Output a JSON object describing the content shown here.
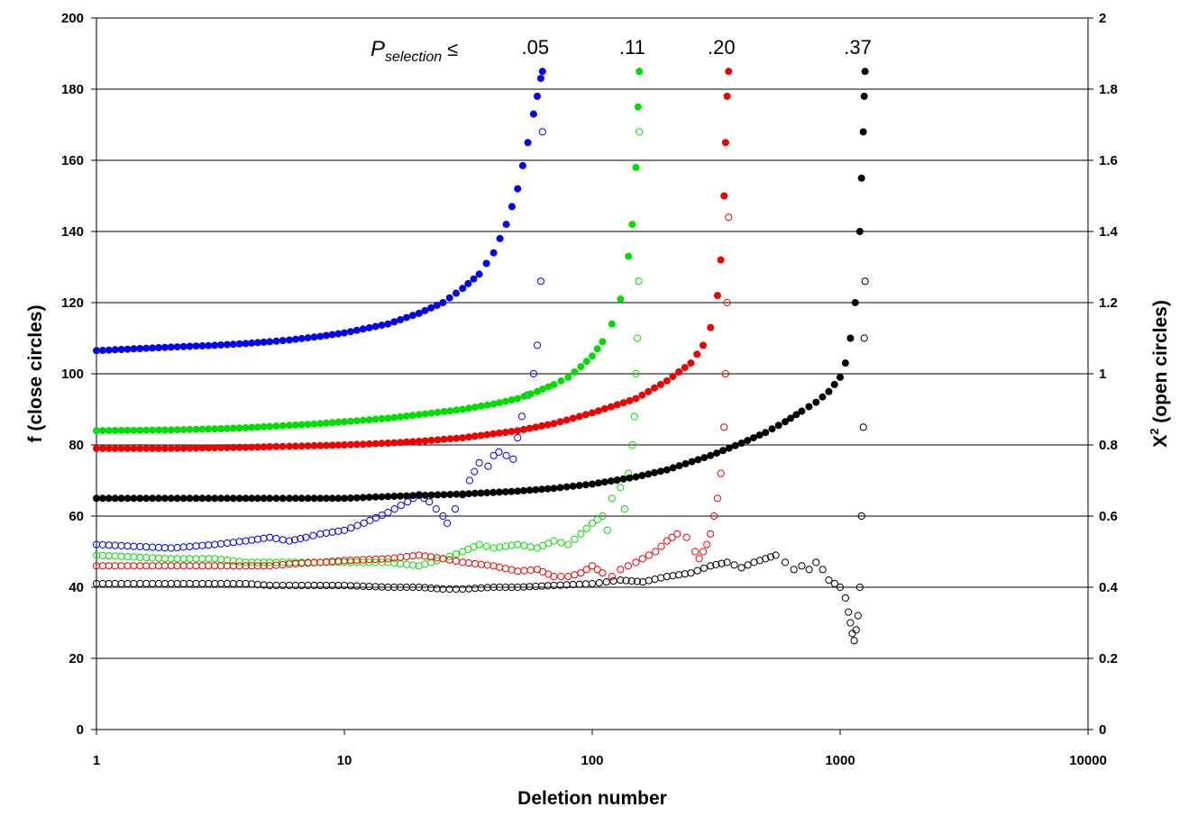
{
  "chart_data": {
    "type": "scatter",
    "title": "",
    "xlabel": "Deletion number",
    "ylabel_left": "f  (close circles)",
    "ylabel_right_base": "X",
    "ylabel_right_sup": "2",
    "ylabel_right_rest": "  (open circles)",
    "x_scale": "log",
    "xlim": [
      1,
      10000
    ],
    "ylim_left": [
      0,
      200
    ],
    "ylim_right": [
      0,
      2
    ],
    "x_ticks": [
      1,
      10,
      100,
      1000,
      10000
    ],
    "x_tick_labels": [
      "1",
      "10",
      "100",
      "1000",
      "10000"
    ],
    "y_left_ticks": [
      0,
      20,
      40,
      60,
      80,
      100,
      120,
      140,
      160,
      180,
      200
    ],
    "y_left_tick_labels": [
      "0",
      "20",
      "40",
      "60",
      "80",
      "100",
      "120",
      "140",
      "160",
      "180",
      "200"
    ],
    "y_right_ticks": [
      0,
      0.2,
      0.4,
      0.6,
      0.8,
      1,
      1.2,
      1.4,
      1.6,
      1.8,
      2
    ],
    "y_right_tick_labels": [
      "0",
      "0.2",
      "0.4",
      "0.6",
      "0.8",
      "1",
      "1.2",
      "1.4",
      "1.6",
      "1.8",
      "2"
    ],
    "grid": "horizontal",
    "legend": "none",
    "annotation": {
      "p_symbol": "P",
      "p_subscript": "selection",
      "p_relation": "≤",
      "threshold_labels": [
        ".05",
        ".11",
        ".20",
        ".37"
      ]
    },
    "series": [
      {
        "color": "#0000ee",
        "f_closed": {
          "x": [
            1,
            2,
            3,
            4,
            5,
            6,
            8,
            10,
            15,
            20,
            25,
            30,
            35,
            40,
            45,
            50,
            55,
            58,
            60,
            62,
            63
          ],
          "y": [
            106.5,
            107.5,
            108,
            108.5,
            109,
            109.5,
            110.5,
            111.5,
            114,
            117,
            120,
            124,
            128,
            134,
            142,
            152,
            165,
            173,
            178,
            183,
            185
          ]
        },
        "chi2_open": {
          "x": [
            1,
            2,
            3,
            4,
            5,
            6,
            7,
            8,
            10,
            12,
            15,
            18,
            20,
            22,
            25,
            26,
            28,
            30,
            32,
            35,
            38,
            40,
            42,
            45,
            48,
            50,
            52,
            55,
            58,
            60,
            62,
            63
          ],
          "y": [
            0.52,
            0.51,
            0.52,
            0.53,
            0.54,
            0.53,
            0.54,
            0.55,
            0.56,
            0.58,
            0.61,
            0.64,
            0.66,
            0.64,
            0.6,
            0.58,
            0.62,
            0.66,
            0.7,
            0.75,
            0.74,
            0.77,
            0.78,
            0.77,
            0.76,
            0.82,
            0.88,
            0.94,
            1.0,
            1.08,
            1.26,
            1.68
          ]
        }
      },
      {
        "color": "#00dd00",
        "f_closed": {
          "x": [
            1,
            2,
            3,
            4,
            5,
            6,
            8,
            10,
            15,
            20,
            30,
            40,
            50,
            60,
            70,
            80,
            90,
            100,
            110,
            120,
            130,
            140,
            145,
            150,
            153,
            155
          ],
          "y": [
            84,
            84.2,
            84.5,
            84.8,
            85.2,
            85.5,
            86,
            86.5,
            87.5,
            88.5,
            90,
            91.5,
            93,
            95,
            97,
            99,
            102,
            105,
            109,
            114,
            121,
            133,
            142,
            158,
            175,
            185
          ]
        },
        "chi2_open": {
          "x": [
            1,
            2,
            3,
            4,
            5,
            6,
            8,
            10,
            15,
            20,
            25,
            30,
            35,
            40,
            50,
            60,
            70,
            80,
            90,
            100,
            110,
            115,
            120,
            125,
            130,
            135,
            140,
            145,
            148,
            150,
            152,
            154,
            155
          ],
          "y": [
            0.49,
            0.48,
            0.48,
            0.47,
            0.47,
            0.47,
            0.47,
            0.47,
            0.47,
            0.46,
            0.48,
            0.5,
            0.52,
            0.51,
            0.52,
            0.51,
            0.53,
            0.52,
            0.55,
            0.58,
            0.6,
            0.56,
            0.65,
            0.7,
            0.68,
            0.62,
            0.72,
            0.8,
            0.88,
            1.0,
            1.1,
            1.26,
            1.68
          ]
        }
      },
      {
        "color": "#ee0000",
        "f_closed": {
          "x": [
            1,
            2,
            3,
            4,
            5,
            6,
            8,
            10,
            15,
            20,
            30,
            50,
            70,
            100,
            150,
            200,
            250,
            280,
            300,
            320,
            330,
            340,
            345,
            350,
            355
          ],
          "y": [
            79,
            79,
            79.2,
            79.3,
            79.5,
            79.6,
            79.8,
            80,
            80.5,
            81,
            82,
            84,
            86,
            89,
            93,
            98,
            103,
            108,
            113,
            122,
            132,
            150,
            165,
            178,
            185
          ]
        },
        "chi2_open": {
          "x": [
            1,
            2,
            3,
            4,
            5,
            6,
            8,
            10,
            15,
            20,
            25,
            30,
            40,
            50,
            60,
            70,
            80,
            90,
            100,
            110,
            120,
            130,
            150,
            180,
            200,
            220,
            240,
            260,
            270,
            280,
            290,
            300,
            310,
            320,
            330,
            340,
            345,
            350,
            355
          ],
          "y": [
            0.46,
            0.46,
            0.46,
            0.46,
            0.46,
            0.465,
            0.47,
            0.475,
            0.48,
            0.49,
            0.48,
            0.47,
            0.46,
            0.445,
            0.45,
            0.43,
            0.43,
            0.44,
            0.46,
            0.44,
            0.43,
            0.45,
            0.47,
            0.5,
            0.53,
            0.55,
            0.54,
            0.5,
            0.48,
            0.5,
            0.52,
            0.55,
            0.6,
            0.65,
            0.72,
            0.85,
            1.0,
            1.2,
            1.44
          ]
        }
      },
      {
        "color": "#000000",
        "f_closed": {
          "x": [
            1,
            2,
            3,
            4,
            5,
            6,
            8,
            10,
            15,
            20,
            30,
            50,
            70,
            100,
            150,
            200,
            300,
            400,
            500,
            600,
            700,
            800,
            900,
            1000,
            1050,
            1100,
            1150,
            1200,
            1220,
            1240,
            1250,
            1260
          ],
          "y": [
            65,
            65,
            65,
            65,
            65,
            65,
            65,
            65,
            65.5,
            65.8,
            66.2,
            67,
            67.8,
            69,
            71,
            73,
            77,
            80.5,
            83.5,
            86.5,
            89.5,
            92,
            95,
            99,
            103,
            110,
            120,
            140,
            155,
            168,
            178,
            185
          ]
        },
        "chi2_open": {
          "x": [
            1,
            2,
            3,
            4,
            5,
            6,
            8,
            10,
            15,
            20,
            25,
            30,
            40,
            50,
            70,
            100,
            130,
            160,
            200,
            250,
            300,
            350,
            400,
            450,
            500,
            550,
            600,
            650,
            700,
            750,
            800,
            850,
            900,
            950,
            1000,
            1050,
            1080,
            1100,
            1120,
            1140,
            1160,
            1180,
            1200,
            1220,
            1240,
            1250,
            1260
          ],
          "y": [
            0.41,
            0.41,
            0.41,
            0.41,
            0.405,
            0.405,
            0.405,
            0.405,
            0.4,
            0.4,
            0.395,
            0.395,
            0.4,
            0.4,
            0.405,
            0.41,
            0.42,
            0.415,
            0.43,
            0.44,
            0.46,
            0.47,
            0.455,
            0.47,
            0.48,
            0.49,
            0.47,
            0.45,
            0.46,
            0.45,
            0.47,
            0.45,
            0.42,
            0.41,
            0.4,
            0.37,
            0.33,
            0.3,
            0.27,
            0.25,
            0.28,
            0.32,
            0.4,
            0.6,
            0.85,
            1.1,
            1.26
          ]
        }
      }
    ]
  }
}
